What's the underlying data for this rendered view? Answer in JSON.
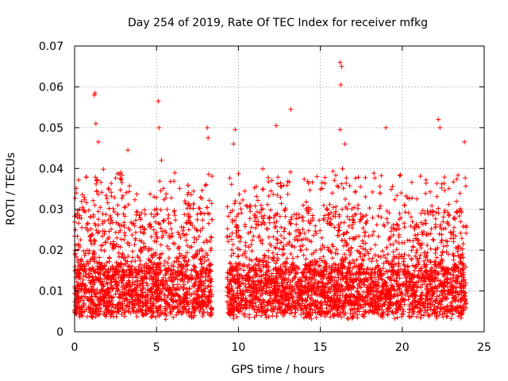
{
  "chart_data": {
    "type": "scatter",
    "title": "Day 254 of 2019, Rate Of TEC Index for receiver mfkg",
    "xlabel": "GPS time / hours",
    "ylabel": "ROTI / TECUs",
    "xlim": [
      0,
      25
    ],
    "ylim": [
      0,
      0.07
    ],
    "grid": true,
    "marker": "+",
    "x_ticks": [
      {
        "value": 0,
        "label": "0"
      },
      {
        "value": 5,
        "label": "5"
      },
      {
        "value": 10,
        "label": "10"
      },
      {
        "value": 15,
        "label": "15"
      },
      {
        "value": 20,
        "label": "20"
      },
      {
        "value": 25,
        "label": "25"
      }
    ],
    "y_ticks": [
      {
        "value": 0,
        "label": "0"
      },
      {
        "value": 0.01,
        "label": "0.01"
      },
      {
        "value": 0.02,
        "label": "0.02"
      },
      {
        "value": 0.03,
        "label": "0.03"
      },
      {
        "value": 0.04,
        "label": "0.04"
      },
      {
        "value": 0.05,
        "label": "0.05"
      },
      {
        "value": 0.06,
        "label": "0.06"
      },
      {
        "value": 0.07,
        "label": "0.07"
      }
    ],
    "series": [
      {
        "name": "ROTI",
        "color": "#ff0000",
        "coverage": [
          [
            0.0,
            8.4
          ],
          [
            9.3,
            23.9
          ]
        ],
        "baseline_range": [
          0.004,
          0.016
        ],
        "typical_max": 0.03,
        "notable_points": [
          {
            "x": 0.1,
            "y": 0.034
          },
          {
            "x": 1.2,
            "y": 0.058
          },
          {
            "x": 1.25,
            "y": 0.0585
          },
          {
            "x": 1.3,
            "y": 0.051
          },
          {
            "x": 1.45,
            "y": 0.0465
          },
          {
            "x": 3.25,
            "y": 0.0445
          },
          {
            "x": 5.1,
            "y": 0.0565
          },
          {
            "x": 5.15,
            "y": 0.05
          },
          {
            "x": 5.3,
            "y": 0.042
          },
          {
            "x": 8.1,
            "y": 0.05
          },
          {
            "x": 8.15,
            "y": 0.0475
          },
          {
            "x": 9.8,
            "y": 0.0495
          },
          {
            "x": 9.7,
            "y": 0.046
          },
          {
            "x": 12.3,
            "y": 0.0505
          },
          {
            "x": 13.2,
            "y": 0.0545
          },
          {
            "x": 16.2,
            "y": 0.066
          },
          {
            "x": 16.3,
            "y": 0.065
          },
          {
            "x": 16.25,
            "y": 0.0605
          },
          {
            "x": 16.2,
            "y": 0.0495
          },
          {
            "x": 16.5,
            "y": 0.046
          },
          {
            "x": 19.0,
            "y": 0.05
          },
          {
            "x": 22.2,
            "y": 0.052
          },
          {
            "x": 22.3,
            "y": 0.05
          },
          {
            "x": 23.8,
            "y": 0.0465
          }
        ]
      }
    ]
  }
}
